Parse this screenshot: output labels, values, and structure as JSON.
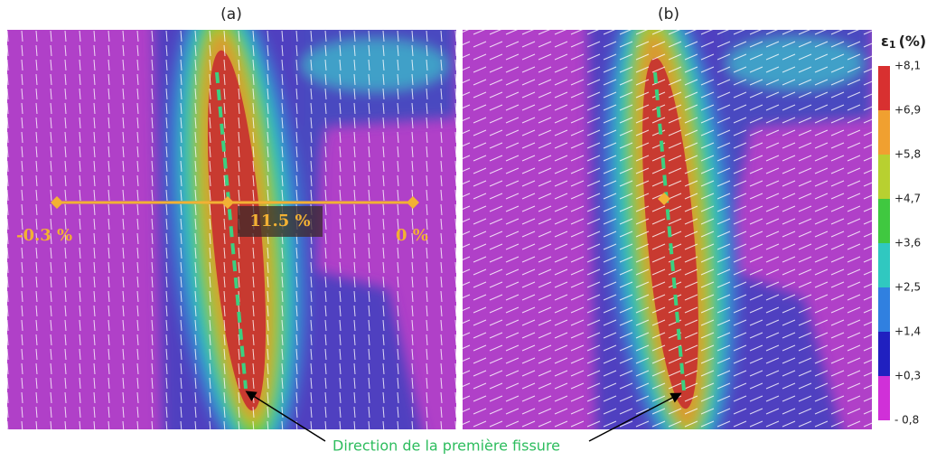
{
  "panels": [
    {
      "label": "(a)"
    },
    {
      "label": "(b)"
    }
  ],
  "colorbar": {
    "title": "ε",
    "title_sub": "1",
    "title_unit": "(%)",
    "ticks": [
      "+8,1",
      "+6,9",
      "+5,8",
      "+4,7",
      "+3,6",
      "+2,5",
      "+1,4",
      "+0,3",
      "- 0,8"
    ]
  },
  "annotations": {
    "left": "-0.3 %",
    "center": "11.5 %",
    "right": "0 %",
    "caption": "Direction de la première fissure"
  }
}
